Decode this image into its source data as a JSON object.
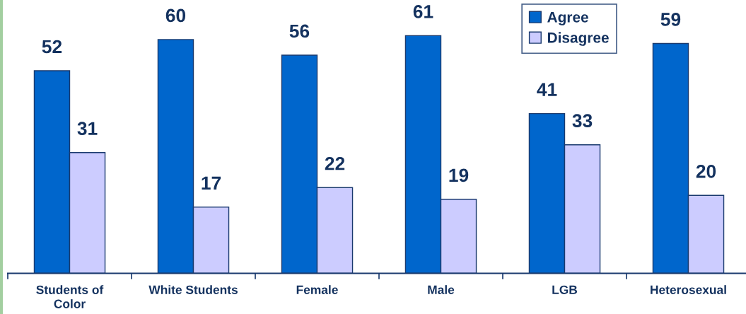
{
  "chart_data": {
    "type": "bar",
    "categories": [
      "Students of Color",
      "White Students",
      "Female",
      "Male",
      "LGB",
      "Heterosexual"
    ],
    "series": [
      {
        "name": "Agree",
        "color": "#0066cc",
        "values": [
          52,
          60,
          56,
          61,
          41,
          59
        ]
      },
      {
        "name": "Disagree",
        "color": "#ccccff",
        "values": [
          31,
          17,
          22,
          19,
          33,
          20
        ]
      }
    ],
    "data_labels": true,
    "legend": "top right"
  }
}
